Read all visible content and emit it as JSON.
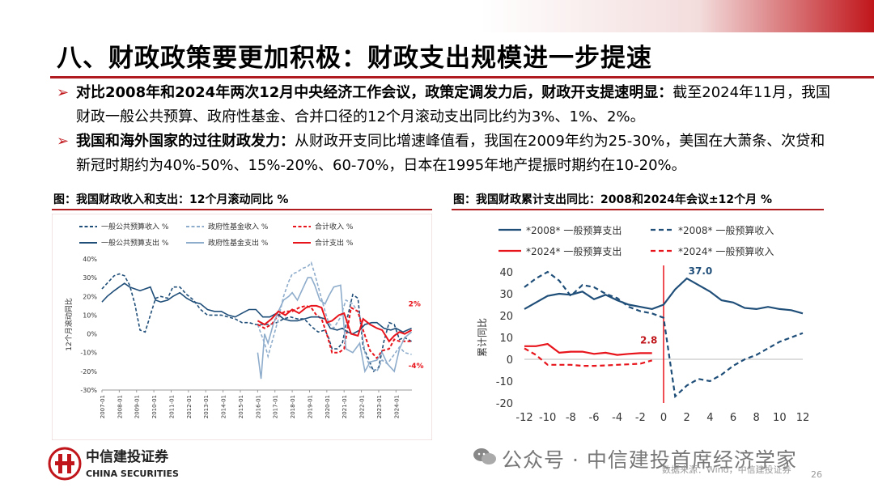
{
  "slide": {
    "title": "八、财政政策要更加积极：财政支出规模进一步提速",
    "bullets": [
      {
        "bold": "对比2008年和2024年两次12月中央经济工作会议，政策定调发力后，财政开支提速明显：",
        "text": "截至2024年11月，我国财政一般公共预算、政府性基金、合并口径的12个月滚动支出同比约为3%、1%、2%。"
      },
      {
        "bold": "我国和海外国家的过往财政发力：",
        "text": "从财政开支同比增速峰值看，我国在2009年约为25-30%，美国在大萧条、次贷和新冠时期约为40%-50%、15%-20%、60-70%，日本在1995年地产提振时期约在10-20%。"
      }
    ],
    "page_number": "26",
    "watermark": "公众号 · 中信建投首席经济学家",
    "source": "数据来源：Wind，中信建投证券",
    "colors": {
      "accent": "#c0161b",
      "navy": "#1f4e79",
      "lightblue": "#8eaccb"
    }
  },
  "logo": {
    "cn": "中信建投证券",
    "en": "CHINA SECURITIES",
    "icon": "citic-logo-icon"
  },
  "chart_data": [
    {
      "type": "line",
      "title": "图：我国财政收入和支出：12个月滚动同比 %",
      "ylabel": "12个月滚动同比",
      "ylim": [
        -30,
        40
      ],
      "yticks": [
        "40%",
        "30%",
        "20%",
        "10%",
        "0%",
        "-10%",
        "-20%",
        "-30%"
      ],
      "x_range": [
        2007.0,
        2024.92
      ],
      "xticks": [
        "2007-01",
        "2008-01",
        "2009-01",
        "2010-01",
        "2011-01",
        "2012-01",
        "2013-01",
        "2014-01",
        "2015-01",
        "2016-01",
        "2017-01",
        "2018-01",
        "2019-01",
        "2020-01",
        "2021-01",
        "2022-01",
        "2023-01",
        "2024-01"
      ],
      "legend_position": "top",
      "annotations": [
        {
          "text": "2%",
          "x": 2024.9,
          "y": 16
        },
        {
          "text": "-4%",
          "x": 2024.9,
          "y": -17
        }
      ],
      "series": [
        {
          "name": "一般公共预算收入 %",
          "color": "#1f4e79",
          "dash": "dash",
          "x": [
            2007.0,
            2007.3,
            2007.7,
            2008.0,
            2008.3,
            2008.6,
            2008.9,
            2009.2,
            2009.5,
            2009.8,
            2010.1,
            2010.4,
            2010.8,
            2011.1,
            2011.5,
            2011.9,
            2012.3,
            2012.7,
            2013.1,
            2013.5,
            2013.9,
            2014.3,
            2014.7,
            2015.1,
            2015.5,
            2015.9,
            2016.3,
            2016.7,
            2017.1,
            2017.5,
            2017.9,
            2018.3,
            2018.7,
            2019.1,
            2019.5,
            2019.9,
            2020.1,
            2020.3,
            2020.6,
            2020.9,
            2021.2,
            2021.5,
            2021.8,
            2022.1,
            2022.4,
            2022.7,
            2023.0,
            2023.3,
            2023.6,
            2023.9,
            2024.2,
            2024.5,
            2024.9
          ],
          "y": [
            24,
            27,
            31,
            32,
            31,
            26,
            16,
            2,
            1,
            10,
            19,
            20,
            19,
            25,
            25,
            21,
            18,
            13,
            10,
            10,
            10,
            9,
            8,
            6,
            6,
            5,
            5,
            5,
            6,
            8,
            9,
            8,
            8,
            4,
            1,
            2,
            -2,
            -8,
            -8,
            -5,
            9,
            21,
            19,
            -7,
            -13,
            -20,
            -18,
            -4,
            6,
            5,
            -3,
            -2,
            -4
          ]
        },
        {
          "name": "政府性基金收入 %",
          "color": "#8eaccb",
          "dash": "dash",
          "x": [
            2016.0,
            2016.2,
            2016.4,
            2016.6,
            2016.9,
            2017.2,
            2017.5,
            2017.8,
            2018.0,
            2018.3,
            2018.6,
            2018.9,
            2019.1,
            2019.3,
            2019.6,
            2019.9,
            2020.1,
            2020.4,
            2020.8,
            2021.1,
            2021.5,
            2021.9,
            2022.2,
            2022.5,
            2022.9,
            2023.2,
            2023.5,
            2023.9,
            2024.2,
            2024.5,
            2024.9
          ],
          "y": [
            5,
            0,
            -5,
            -12,
            -2,
            8,
            20,
            28,
            32,
            33,
            35,
            36,
            38,
            32,
            22,
            12,
            6,
            3,
            9,
            18,
            16,
            10,
            -10,
            -18,
            -20,
            -14,
            -16,
            -11,
            -7,
            -10,
            -11
          ]
        },
        {
          "name": "合计收入 %",
          "color": "#e8141b",
          "dash": "dash",
          "x": [
            2016.0,
            2016.4,
            2016.8,
            2017.2,
            2017.6,
            2018.0,
            2018.4,
            2018.8,
            2019.1,
            2019.4,
            2019.7,
            2020.0,
            2020.3,
            2020.7,
            2021.0,
            2021.4,
            2021.8,
            2022.1,
            2022.5,
            2022.9,
            2023.2,
            2023.6,
            2023.9,
            2024.2,
            2024.5,
            2024.9
          ],
          "y": [
            5,
            3,
            5,
            10,
            12,
            12,
            14,
            15,
            14,
            10,
            8,
            0,
            -10,
            -10,
            -8,
            14,
            12,
            2,
            -9,
            -13,
            -9,
            -8,
            -3,
            -4,
            -4,
            -4
          ]
        },
        {
          "name": "一般公共预算支出 %",
          "color": "#1f4e79",
          "dash": "solid",
          "x": [
            2007.0,
            2007.3,
            2007.7,
            2008.0,
            2008.3,
            2008.6,
            2008.9,
            2009.2,
            2009.5,
            2009.8,
            2010.1,
            2010.4,
            2010.8,
            2011.1,
            2011.5,
            2011.9,
            2012.3,
            2012.7,
            2013.1,
            2013.5,
            2013.9,
            2014.3,
            2014.7,
            2015.1,
            2015.5,
            2015.9,
            2016.3,
            2016.7,
            2017.1,
            2017.5,
            2017.9,
            2018.3,
            2018.7,
            2019.1,
            2019.5,
            2019.9,
            2020.2,
            2020.6,
            2020.9,
            2021.2,
            2021.5,
            2021.9,
            2022.2,
            2022.6,
            2022.9,
            2023.3,
            2023.7,
            2024.0,
            2024.4,
            2024.9
          ],
          "y": [
            17,
            20,
            23,
            25,
            27,
            25,
            24,
            23,
            24,
            25,
            18,
            17,
            18,
            20,
            22,
            19,
            17,
            16,
            13,
            12,
            12,
            10,
            9,
            11,
            13,
            13,
            9,
            9,
            11,
            8,
            7,
            7,
            8,
            9,
            9,
            8,
            3,
            2,
            3,
            1,
            0,
            2,
            5,
            6,
            6,
            3,
            2,
            3,
            1,
            3
          ]
        },
        {
          "name": "政府性基金支出 %",
          "color": "#8eaccb",
          "dash": "solid",
          "x": [
            2016.0,
            2016.2,
            2016.4,
            2016.6,
            2016.9,
            2017.2,
            2017.5,
            2017.8,
            2018.0,
            2018.3,
            2018.6,
            2018.9,
            2019.1,
            2019.3,
            2019.6,
            2019.9,
            2020.1,
            2020.4,
            2020.8,
            2021.1,
            2021.5,
            2021.9,
            2022.2,
            2022.5,
            2022.9,
            2023.2,
            2023.5,
            2023.9,
            2024.2,
            2024.5,
            2024.9
          ],
          "y": [
            -10,
            -24,
            0,
            -5,
            5,
            12,
            18,
            20,
            22,
            18,
            24,
            30,
            30,
            26,
            18,
            16,
            20,
            25,
            26,
            -8,
            -10,
            -5,
            -20,
            -15,
            -14,
            -10,
            -16,
            -20,
            -8,
            -2,
            1
          ]
        },
        {
          "name": "合计支出 %",
          "color": "#e8141b",
          "dash": "solid",
          "x": [
            2016.0,
            2016.4,
            2016.8,
            2017.2,
            2017.6,
            2018.0,
            2018.4,
            2018.8,
            2019.1,
            2019.4,
            2019.7,
            2020.0,
            2020.3,
            2020.7,
            2021.0,
            2021.4,
            2021.8,
            2022.1,
            2022.5,
            2022.9,
            2023.2,
            2023.6,
            2023.9,
            2024.2,
            2024.5,
            2024.9
          ],
          "y": [
            7,
            5,
            8,
            12,
            10,
            13,
            11,
            14,
            15,
            15,
            14,
            6,
            7,
            10,
            11,
            0,
            -1,
            8,
            5,
            3,
            2,
            -4,
            -1,
            1,
            0,
            2
          ]
        }
      ]
    },
    {
      "type": "line",
      "title": "图：我国财政累计支出同比：2008和2024年会议±12个月 %",
      "ylabel": "累计同比",
      "ylim": [
        -20,
        40
      ],
      "yticks": [
        "40",
        "30",
        "20",
        "10",
        "0",
        "-10",
        "-20"
      ],
      "xlim": [
        -12,
        12
      ],
      "xticks": [
        "-12",
        "-10",
        "-8",
        "-6",
        "-4",
        "-2",
        "0",
        "2",
        "4",
        "6",
        "8",
        "10",
        "12"
      ],
      "legend_position": "top",
      "annotations": [
        {
          "text": "37.0",
          "x": 2,
          "y": 37
        },
        {
          "text": "2.8",
          "x": -1,
          "y": 2.8
        }
      ],
      "series": [
        {
          "name": "*2008* 一般预算支出",
          "color": "#1f4e79",
          "dash": "solid",
          "x": [
            -12,
            -11,
            -10,
            -9,
            -8,
            -7,
            -6,
            -5,
            -4,
            -3,
            -2,
            -1,
            0,
            1,
            2,
            3,
            4,
            5,
            6,
            7,
            8,
            9,
            10,
            11,
            12
          ],
          "y": [
            23,
            26,
            29,
            30,
            29.5,
            31,
            27.5,
            29.5,
            27,
            25,
            24,
            23,
            25,
            32,
            37,
            34,
            31,
            27,
            26,
            23.5,
            23,
            24,
            23,
            22.5,
            21
          ]
        },
        {
          "name": "*2008* 一般预算收入",
          "color": "#1f4e79",
          "dash": "dash",
          "x": [
            -12,
            -11,
            -10,
            -9,
            -8,
            -7,
            -6,
            -5,
            -4,
            -3,
            -2,
            -1,
            0,
            1,
            2,
            3,
            4,
            5,
            6,
            7,
            8,
            9,
            10,
            11,
            12
          ],
          "y": [
            33,
            37,
            40,
            36,
            29,
            34,
            33,
            30,
            28,
            24,
            22,
            21,
            19,
            -17,
            -12,
            -9,
            -10,
            -7,
            -3,
            0,
            2,
            5,
            8,
            10,
            12
          ]
        },
        {
          "name": "*2024* 一般预算支出",
          "color": "#e8141b",
          "dash": "solid",
          "x": [
            -12,
            -11,
            -10,
            -9,
            -8,
            -7,
            -6,
            -5,
            -4,
            -3,
            -2,
            -1
          ],
          "y": [
            6,
            6,
            7,
            3,
            3.5,
            3.5,
            2.5,
            3,
            2,
            2.5,
            2.8,
            2.8
          ]
        },
        {
          "name": "*2024* 一般预算收入",
          "color": "#e8141b",
          "dash": "dash",
          "x": [
            -12,
            -11,
            -10,
            -9,
            -8,
            -7,
            -6,
            -5,
            -4,
            -3,
            -2,
            -1
          ],
          "y": [
            5,
            2,
            -2.5,
            -2.5,
            -2.5,
            -3,
            -3,
            -2.8,
            -2.5,
            -2.3,
            -2,
            -0.5
          ]
        }
      ]
    }
  ]
}
